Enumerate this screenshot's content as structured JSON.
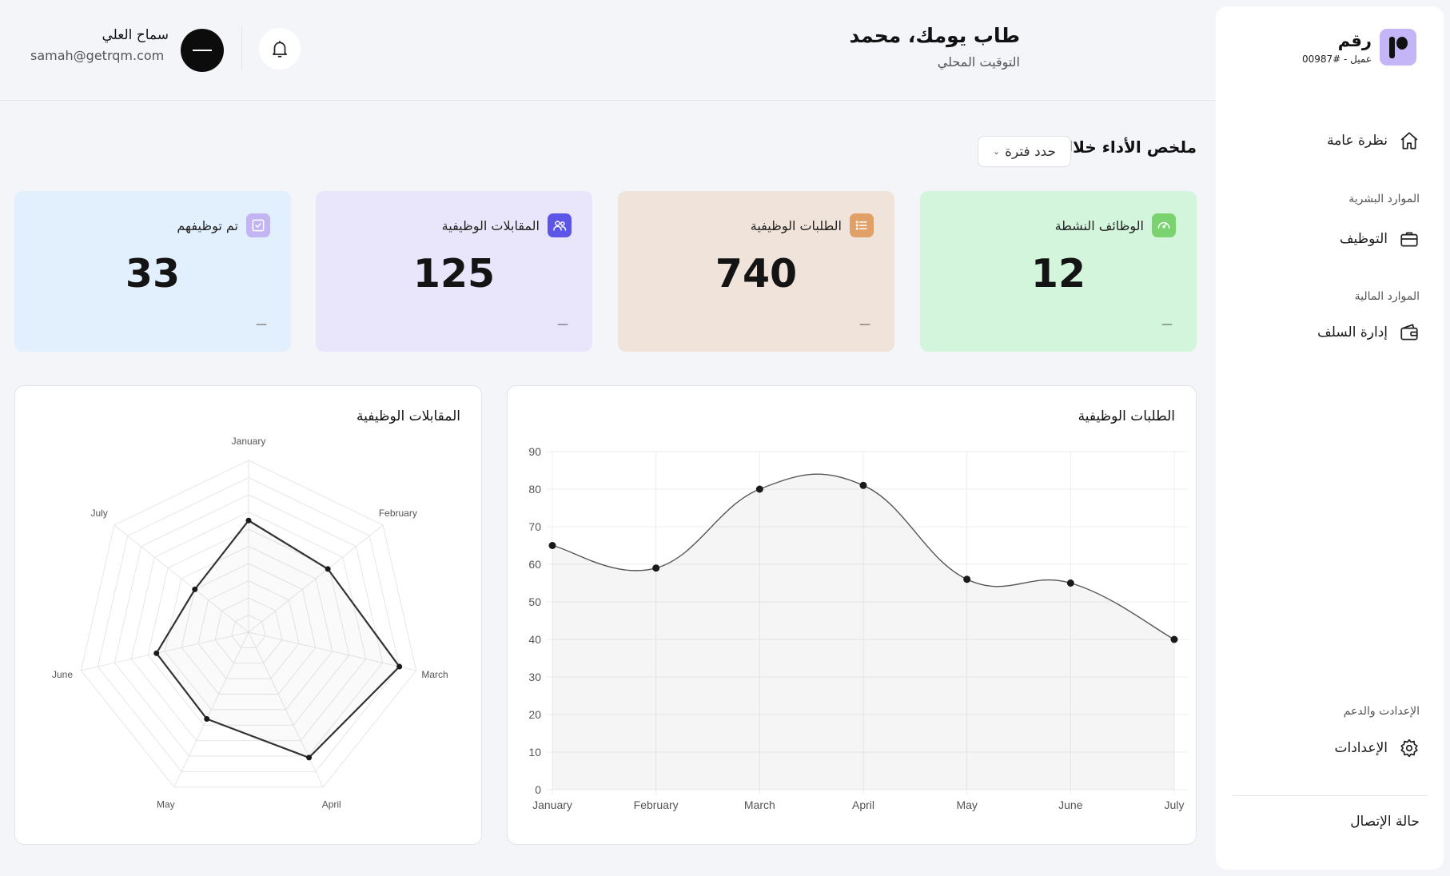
{
  "sidebar": {
    "brand_name": "رقم",
    "brand_sub": "عميل - #00987",
    "overview": "نظرة عامة",
    "hr_section": "الموارد البشرية",
    "hiring": "التوظيف",
    "finance_section": "الموارد المالية",
    "advances": "إدارة السلف",
    "settings_section": "الإعدادت والدعم",
    "settings": "الإعدادات",
    "connection_status": "حالة الإتصال"
  },
  "header": {
    "greeting": "طاب يومك، محمد",
    "local_time": "التوقيت المحلي",
    "user_name": "سماح العلي",
    "user_email": "samah@getrqm.com"
  },
  "summary": {
    "title": "ملخص الأداء خلال",
    "period_placeholder": "حدد فترة"
  },
  "cards": [
    {
      "label": "الوظائف النشطة",
      "value": "12",
      "trend": "—",
      "color": "#d3f5dc",
      "icon_color": "#7ad36f",
      "icon": "gauge-icon"
    },
    {
      "label": "الطلبات الوظيفية",
      "value": "740",
      "trend": "—",
      "color": "#f0e4da",
      "icon_color": "#e0a067",
      "icon": "list-icon"
    },
    {
      "label": "المقابلات الوظيفية",
      "value": "125",
      "trend": "—",
      "color": "#e9e6fb",
      "icon_color": "#5b55e8",
      "icon": "users-icon"
    },
    {
      "label": "تم توظيفهم",
      "value": "33",
      "trend": "—",
      "color": "#e2effd",
      "icon_color": "#c3b4f3",
      "icon": "check-square-icon"
    }
  ],
  "chart_data": [
    {
      "type": "area",
      "title": "الطلبات الوظيفية",
      "categories": [
        "January",
        "February",
        "March",
        "April",
        "May",
        "June",
        "July"
      ],
      "series": [
        {
          "values": [
            65,
            59,
            80,
            81,
            56,
            55,
            40
          ]
        }
      ],
      "ylim": [
        0,
        90
      ],
      "yticks": [
        0,
        10,
        20,
        30,
        40,
        50,
        60,
        70,
        80,
        90
      ],
      "grid": true
    },
    {
      "type": "radar",
      "title": "المقابلات الوظيفية",
      "categories": [
        "January",
        "February",
        "March",
        "April",
        "May",
        "June",
        "July"
      ],
      "series": [
        {
          "values": [
            65,
            59,
            90,
            81,
            56,
            55,
            40
          ]
        }
      ],
      "range": [
        0,
        100
      ],
      "grid": true
    }
  ]
}
